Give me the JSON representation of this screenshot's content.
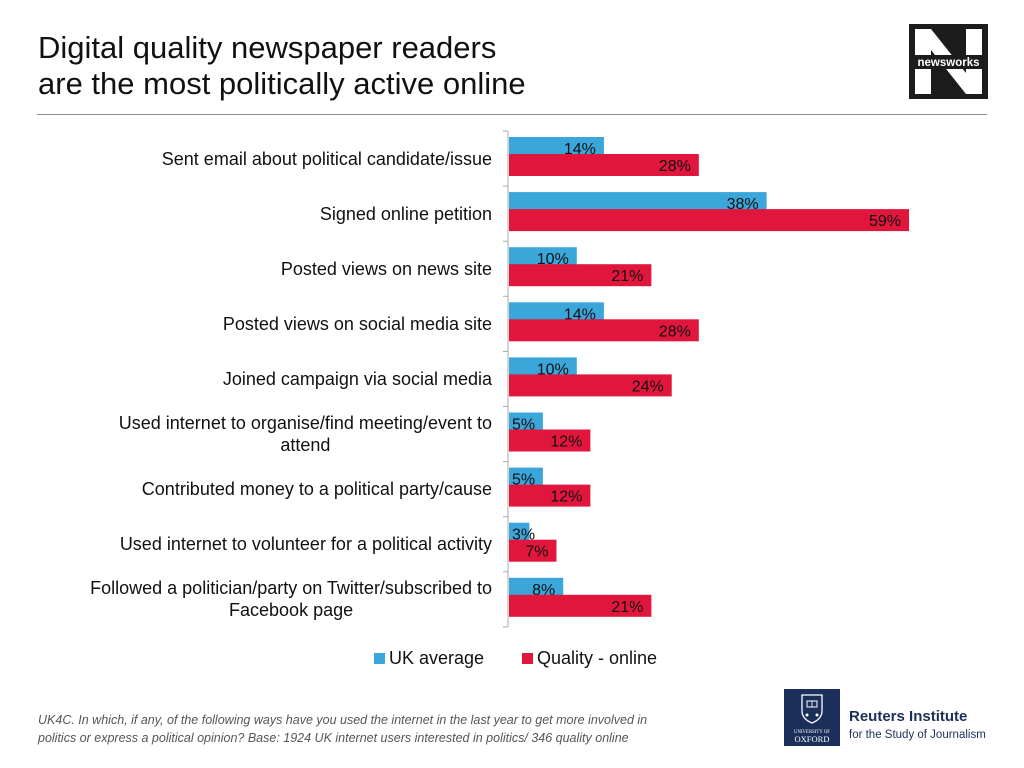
{
  "header": {
    "title_line1": "Digital quality newspaper readers",
    "title_line2": "are the most politically active online"
  },
  "logos": {
    "newsworks": "newsworks",
    "oxford_lines": [
      "UNIVERSITY OF",
      "OXFORD"
    ],
    "reuters_name": "Reuters Institute",
    "reuters_sub": "for the Study of Journalism"
  },
  "colors": {
    "uk_average": "#3aa6d9",
    "quality_online": "#e0163d",
    "axis": "#aaaaaa",
    "newsworks_bg": "#1c1c1c",
    "oxford_blue": "#1c2f5a"
  },
  "chart_data": {
    "type": "bar",
    "orientation": "horizontal",
    "title": "",
    "xlabel": "",
    "ylabel": "",
    "xlim": [
      0,
      60
    ],
    "grid": false,
    "legend_position": "bottom",
    "value_suffix": "%",
    "categories": [
      "Sent email about political candidate/issue",
      "Signed online petition",
      "Posted views on news site",
      "Posted views on social media site",
      "Joined campaign via social media",
      "Used internet to organise/find meeting/event to attend",
      "Contributed money to a political party/cause",
      "Used internet to volunteer for a political activity",
      "Followed a politician/party on Twitter/subscribed to Facebook page"
    ],
    "category_lines": [
      [
        "Sent email about political candidate/issue"
      ],
      [
        "Signed online petition"
      ],
      [
        "Posted views on news site"
      ],
      [
        "Posted views on social media site"
      ],
      [
        "Joined campaign via social media"
      ],
      [
        "Used internet to organise/find meeting/event to",
        "attend"
      ],
      [
        "Contributed money to a political party/cause"
      ],
      [
        "Used internet to volunteer for a political activity"
      ],
      [
        "Followed a politician/party on Twitter/subscribed to",
        "Facebook page"
      ]
    ],
    "series": [
      {
        "name": "UK average",
        "values": [
          14,
          38,
          10,
          14,
          10,
          5,
          5,
          3,
          8
        ]
      },
      {
        "name": "Quality - online",
        "values": [
          28,
          59,
          21,
          28,
          24,
          12,
          12,
          7,
          21
        ]
      }
    ]
  },
  "footnote": {
    "line1": "UK4C. In which, if any, of the following ways have you used the internet in the last year to get more involved in",
    "line2": "politics or express a political opinion? Base: 1924 UK  internet users interested in politics/ 346 quality online"
  }
}
